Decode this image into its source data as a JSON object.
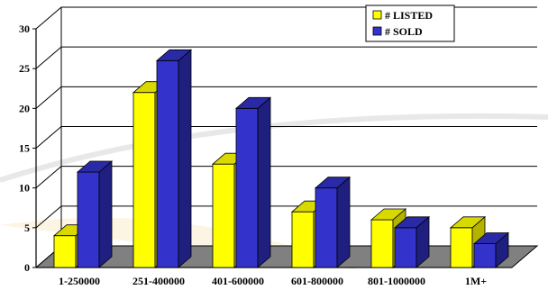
{
  "chart_data": {
    "type": "bar",
    "categories": [
      "1-250000",
      "251-400000",
      "401-600000",
      "601-800000",
      "801-1000000",
      "1M+"
    ],
    "series": [
      {
        "name": "# LISTED",
        "values": [
          4,
          22,
          13,
          7,
          6,
          5
        ],
        "color": "#FFFF00",
        "side_color": "#B3B300",
        "top_color": "#D9D900"
      },
      {
        "name": "# SOLD",
        "values": [
          12,
          26,
          20,
          10,
          5,
          3
        ],
        "color": "#3333CC",
        "side_color": "#1F1F80",
        "top_color": "#2A2AA6"
      }
    ],
    "ylim": [
      0,
      30
    ],
    "yticks": [
      0,
      5,
      10,
      15,
      20,
      25,
      30
    ],
    "grid": true,
    "legend_position": "top-right",
    "floor_color": "#808080",
    "title": "",
    "xlabel": "",
    "ylabel": ""
  }
}
